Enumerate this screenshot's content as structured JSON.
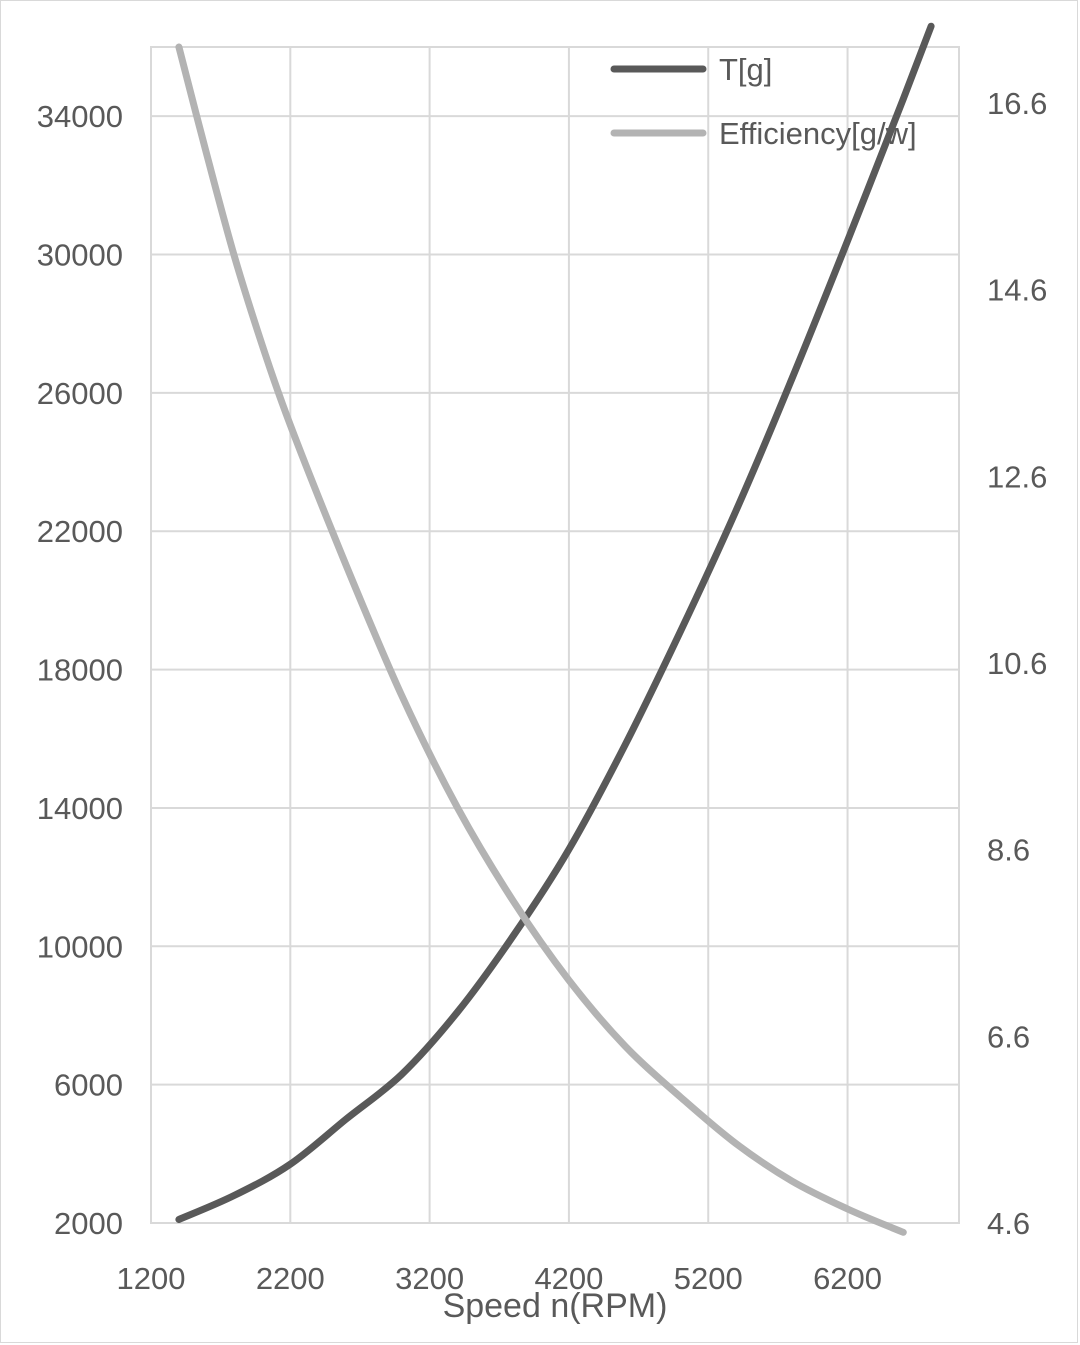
{
  "chart_data": {
    "type": "line",
    "title": "",
    "xlabel": "Speed n(RPM)",
    "ylabel": "",
    "y2label": "",
    "xlim": [
      1200,
      7000
    ],
    "ylim": [
      2000,
      36000
    ],
    "y2lim": [
      4.6,
      17.2
    ],
    "x_ticks": [
      1200,
      2200,
      3200,
      4200,
      5200,
      6200
    ],
    "y_ticks": [
      2000,
      6000,
      10000,
      14000,
      18000,
      22000,
      26000,
      30000,
      34000
    ],
    "y2_ticks": [
      "4.6",
      "6.6",
      "8.6",
      "10.6",
      "12.6",
      "14.6",
      "16.6"
    ],
    "grid": true,
    "legend_position": "top-right",
    "colors": {
      "thrust": "#595959",
      "efficiency": "#b3b3b3",
      "grid": "#d9d9d9"
    },
    "series": [
      {
        "name": "T[g]",
        "axis": "left",
        "color": "#595959",
        "x": [
          1400,
          1800,
          2200,
          2600,
          3000,
          3400,
          3800,
          4200,
          4600,
          5000,
          5400,
          5800,
          6200,
          6600,
          6800
        ],
        "y": [
          2100,
          2800,
          3700,
          5000,
          6300,
          8100,
          10300,
          12800,
          15800,
          19100,
          22600,
          26400,
          30400,
          34500,
          36600
        ]
      },
      {
        "name": "Efficiency[g/w]",
        "axis": "right",
        "color": "#b3b3b3",
        "x": [
          1400,
          1600,
          1800,
          2000,
          2200,
          2600,
          3000,
          3400,
          3800,
          4200,
          4600,
          5000,
          5400,
          5800,
          6200,
          6600
        ],
        "y": [
          17.2,
          16.05,
          14.95,
          14.0,
          13.15,
          11.65,
          10.25,
          9.05,
          8.05,
          7.2,
          6.5,
          5.95,
          5.45,
          5.05,
          4.75,
          4.5
        ]
      }
    ]
  }
}
